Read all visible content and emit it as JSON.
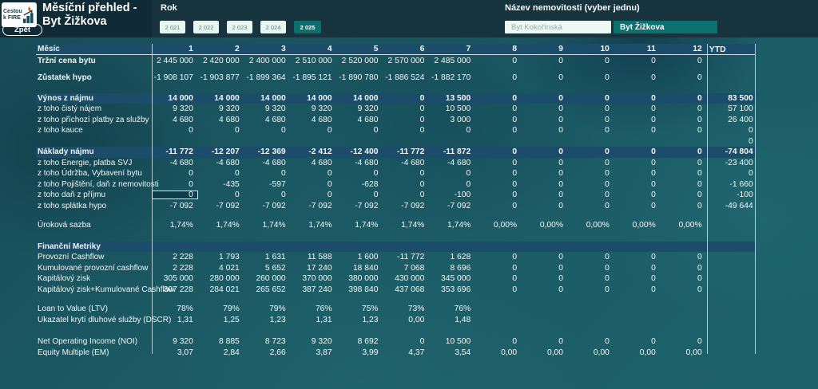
{
  "header": {
    "logo": {
      "line1": "Cestou",
      "line2": "k FIRE"
    },
    "title": "Měsíční přehled - Byt Žižkova",
    "back_button": "Zpět",
    "year_filter": {
      "label": "Rok",
      "options": [
        "2 021",
        "2 022",
        "2 023",
        "2 024",
        "2 025"
      ],
      "selected": "2 025"
    },
    "property_filter": {
      "label": "Název nemovitosti (vyber jednu)",
      "options": [
        "Byt Kokořínská",
        "Byt Žižkova"
      ],
      "selected": "Byt Žižkova"
    }
  },
  "colors": {
    "accent_teal": "#0d7170",
    "band_blue": "#1b4c69",
    "topbar": "#16333e",
    "background": "#1b5a64"
  },
  "table": {
    "month_label": "Měsíc",
    "columns": [
      "1",
      "2",
      "3",
      "4",
      "5",
      "6",
      "7",
      "8",
      "9",
      "10",
      "11",
      "12"
    ],
    "ytd_label": "YTD",
    "rows": [
      {
        "label": "Tržní cena bytu",
        "bold_label": true,
        "gap": 1,
        "values": [
          "2 445 000",
          "2 420 000",
          "2 400 000",
          "2 510 000",
          "2 520 000",
          "2 570 000",
          "2 485 000",
          "0",
          "0",
          "0",
          "0",
          "0"
        ],
        "ytd": ""
      },
      {
        "label": "Zůstatek hypo",
        "bold_label": true,
        "gap": 8,
        "values": [
          "-1 908 107",
          "-1 903 877",
          "-1 899 364",
          "-1 895 121",
          "-1 890 780",
          "-1 886 524",
          "-1 882 170",
          "0",
          "0",
          "0",
          "0",
          "0"
        ],
        "ytd": ""
      },
      {
        "label": "Výnos z nájmu",
        "band": true,
        "gap": 12,
        "values": [
          "14 000",
          "14 000",
          "14 000",
          "14 000",
          "14 000",
          "0",
          "13 500",
          "0",
          "0",
          "0",
          "0",
          "0"
        ],
        "ytd": "83 500"
      },
      {
        "label": "z toho čistý nájem",
        "values": [
          "9 320",
          "9 320",
          "9 320",
          "9 320",
          "9 320",
          "0",
          "10 500",
          "0",
          "0",
          "0",
          "0",
          "0"
        ],
        "ytd": "57 100"
      },
      {
        "label": "z toho příchozí platby za služby",
        "values": [
          "4 680",
          "4 680",
          "4 680",
          "4 680",
          "4 680",
          "0",
          "3 000",
          "0",
          "0",
          "0",
          "0",
          "0"
        ],
        "ytd": "26 400"
      },
      {
        "label": "z toho kauce",
        "values": [
          "0",
          "0",
          "0",
          "0",
          "0",
          "0",
          "0",
          "0",
          "0",
          "0",
          "0",
          "0"
        ],
        "ytd": "0"
      },
      {
        "label": "",
        "values": [
          "",
          "",
          "",
          "",
          "",
          "",
          "",
          "",
          "",
          "",
          "",
          ""
        ],
        "ytd": "0"
      },
      {
        "label": "Náklady nájmu",
        "band": true,
        "values": [
          "-11 772",
          "-12 207",
          "-12 369",
          "-2 412",
          "-12 400",
          "-11 772",
          "-11 872",
          "0",
          "0",
          "0",
          "0",
          "0"
        ],
        "ytd": "-74 804"
      },
      {
        "label": "z toho Energie, platba SVJ",
        "values": [
          "-4 680",
          "-4 680",
          "-4 680",
          "4 680",
          "-4 680",
          "-4 680",
          "-4 680",
          "0",
          "0",
          "0",
          "0",
          "0"
        ],
        "ytd": "-23 400"
      },
      {
        "label": "z toho Údržba, Vybavení bytu",
        "values": [
          "0",
          "0",
          "0",
          "0",
          "0",
          "0",
          "0",
          "0",
          "0",
          "0",
          "0",
          "0"
        ],
        "ytd": "0"
      },
      {
        "label": "z toho Pojištění, daň z nemovitosti",
        "values": [
          "0",
          "-435",
          "-597",
          "0",
          "-628",
          "0",
          "0",
          "0",
          "0",
          "0",
          "0",
          "0"
        ],
        "ytd": "-1 660"
      },
      {
        "label": "z toho daň z příjmu",
        "selected_cell": 0,
        "values": [
          "0",
          "0",
          "0",
          "0",
          "0",
          "0",
          "-100",
          "0",
          "0",
          "0",
          "0",
          "0"
        ],
        "ytd": "-100"
      },
      {
        "label": "z toho splátka hypo",
        "values": [
          "-7 092",
          "-7 092",
          "-7 092",
          "-7 092",
          "-7 092",
          "-7 092",
          "-7 092",
          "0",
          "0",
          "0",
          "0",
          "0"
        ],
        "ytd": "-49 644"
      },
      {
        "label": "Úroková sazba",
        "gap": 11,
        "values": [
          "1,74%",
          "1,74%",
          "1,74%",
          "1,74%",
          "1,74%",
          "1,74%",
          "1,74%",
          "0,00%",
          "0,00%",
          "0,00%",
          "0,00%",
          "0,00%"
        ],
        "ytd": ""
      },
      {
        "label": "Finanční Metriky",
        "band": true,
        "gap": 13,
        "values": [
          "",
          "",
          "",
          "",
          "",
          "",
          "",
          "",
          "",
          "",
          "",
          ""
        ],
        "ytd": ""
      },
      {
        "label": "Provozní Cashflow",
        "values": [
          "2 228",
          "1 793",
          "1 631",
          "11 588",
          "1 600",
          "-11 772",
          "1 628",
          "0",
          "0",
          "0",
          "0",
          "0"
        ],
        "ytd": ""
      },
      {
        "label": "Kumulované provozní cashflow",
        "values": [
          "2 228",
          "4 021",
          "5 652",
          "17 240",
          "18 840",
          "7 068",
          "8 696",
          "0",
          "0",
          "0",
          "0",
          "0"
        ],
        "ytd": ""
      },
      {
        "label": "Kapitálový zisk",
        "values": [
          "305 000",
          "280 000",
          "260 000",
          "370 000",
          "380 000",
          "430 000",
          "345 000",
          "0",
          "0",
          "0",
          "0",
          "0"
        ],
        "ytd": ""
      },
      {
        "label": "Kapitálový zisk+Kumulované Cashflow",
        "values": [
          "307 228",
          "284 021",
          "265 652",
          "387 240",
          "398 840",
          "437 068",
          "353 696",
          "0",
          "0",
          "0",
          "0",
          "0"
        ],
        "ytd": ""
      },
      {
        "label": "Loan to Value (LTV)",
        "gap": 11,
        "values": [
          "78%",
          "79%",
          "79%",
          "76%",
          "75%",
          "73%",
          "76%",
          "",
          "",
          "",
          "",
          ""
        ],
        "ytd": ""
      },
      {
        "label": "Ukazatel krytí dluhové služby (DSCR)",
        "values": [
          "1,31",
          "1,25",
          "1,23",
          "1,31",
          "1,23",
          "0,00",
          "1,48",
          "",
          "",
          "",
          "",
          ""
        ],
        "ytd": ""
      },
      {
        "label": "Net Operating Income (NOI)",
        "gap": 14,
        "values": [
          "9 320",
          "8 885",
          "8 723",
          "9 320",
          "8 692",
          "0",
          "10 500",
          "0",
          "0",
          "0",
          "0",
          "0"
        ],
        "ytd": ""
      },
      {
        "label": "Equity Multiple (EM)",
        "values": [
          "3,07",
          "2,84",
          "2,66",
          "3,87",
          "3,99",
          "4,37",
          "3,54",
          "0,00",
          "0,00",
          "0,00",
          "0,00",
          "0,00"
        ],
        "ytd": ""
      }
    ]
  }
}
